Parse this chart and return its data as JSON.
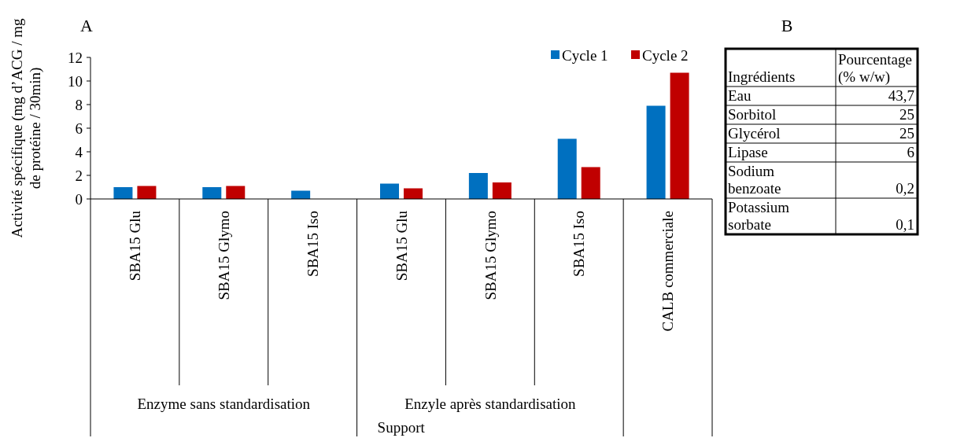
{
  "chart_data": [
    {
      "type": "bar",
      "title": "A",
      "xlabel": "Support",
      "ylabel": "Activité spécifique (mg d’ACG / mg\nde protéine / 30min)",
      "categories": [
        "SBA15 Glu",
        "SBA15 Glymo",
        "SBA15 Iso",
        "SBA15 Glu",
        "SBA15 Glymo",
        "SBA15 Iso",
        "CALB commerciale"
      ],
      "series": [
        {
          "name": "Cycle 1",
          "color": "#0070c0",
          "values": [
            1.0,
            1.0,
            0.7,
            1.3,
            2.2,
            5.1,
            7.9
          ]
        },
        {
          "name": "Cycle 2",
          "color": "#c00000",
          "values": [
            1.1,
            1.1,
            null,
            0.9,
            1.4,
            2.7,
            10.7
          ]
        }
      ],
      "ylim": [
        0,
        12
      ],
      "yticks": [
        0,
        2,
        4,
        6,
        8,
        10,
        12
      ],
      "legend": "top right",
      "annotations": [
        "Enzyme sans standardisation",
        "Enzyle après standardisation"
      ]
    },
    {
      "type": "other",
      "title": "B",
      "xlabel": "Ingrédients",
      "ylabel": "Pourcentage (% w/w)",
      "categories": [
        "Eau",
        "Sorbitol",
        "Glycérol",
        "Lipase",
        "Sodium benzoate",
        "Potassium sorbate"
      ],
      "value_labels": [
        "43,7",
        "25",
        "25",
        "6",
        "0,2",
        "0,1"
      ]
    }
  ]
}
